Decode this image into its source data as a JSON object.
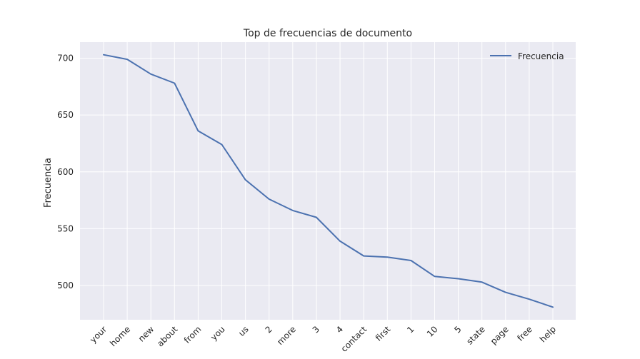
{
  "chart_data": {
    "type": "line",
    "title": "Top de frecuencias de documento",
    "xlabel": "",
    "ylabel": "Frecuencia",
    "categories": [
      "your",
      "home",
      "new",
      "about",
      "from",
      "you",
      "us",
      "2",
      "more",
      "3",
      "4",
      "contact",
      "first",
      "1",
      "10",
      "5",
      "state",
      "page",
      "free",
      "help"
    ],
    "series": [
      {
        "name": "Frecuencia",
        "color": "#4c72b0",
        "values": [
          703,
          699,
          686,
          678,
          636,
          624,
          593,
          576,
          566,
          560,
          539,
          526,
          525,
          522,
          508,
          506,
          503,
          494,
          488,
          481
        ]
      }
    ],
    "yticks": [
      500,
      550,
      600,
      650,
      700
    ],
    "ylim": [
      469.9,
      714.1
    ],
    "grid": true,
    "legend_position": "top-right",
    "colors": {
      "background": "#eaeaf2",
      "grid": "#ffffff"
    }
  }
}
